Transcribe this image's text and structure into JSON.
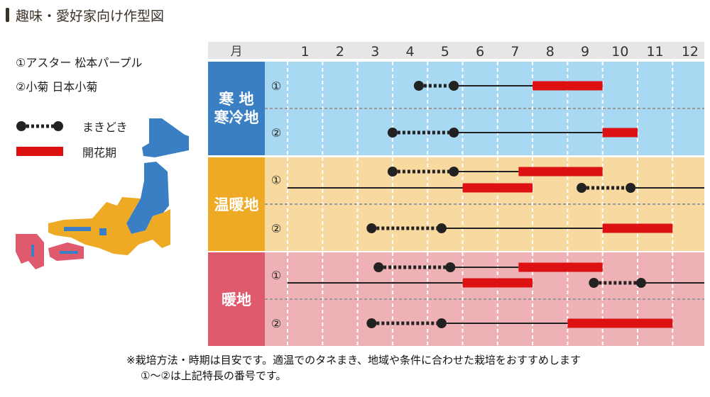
{
  "title": "趣味・愛好家向け作型図",
  "varieties": [
    "①アスター 松本パープル",
    "②小菊 日本小菊"
  ],
  "legend": {
    "sowing": "まきどき",
    "flowering": "開花期"
  },
  "colors": {
    "cold": "#3a7fc4",
    "cold_bg": "#a8d8f2",
    "warm": "#eeaa24",
    "warm_bg": "#f8d9a0",
    "hot": "#e05a6e",
    "hot_bg": "#eeb2b6",
    "bloom": "#dd1111",
    "line": "#222222",
    "header_bg": "#e6e6e6"
  },
  "chart_data": {
    "type": "gantt",
    "month_header": "月",
    "months": [
      "1",
      "2",
      "3",
      "4",
      "5",
      "6",
      "7",
      "8",
      "9",
      "10",
      "11",
      "12"
    ],
    "regions": [
      {
        "name": "寒 地",
        "name2": "寒冷地",
        "key": "cold",
        "rows": [
          {
            "label": "①",
            "tracks": [
              [
                {
                  "type": "sow",
                  "from": 4.75,
                  "to": 5.75
                },
                {
                  "type": "grow",
                  "from": 5.75,
                  "to": 8.0
                },
                {
                  "type": "bloom",
                  "from": 8.0,
                  "to": 10.0
                }
              ]
            ]
          },
          {
            "label": "②",
            "tracks": [
              [
                {
                  "type": "sow",
                  "from": 4.0,
                  "to": 5.75
                },
                {
                  "type": "grow",
                  "from": 5.75,
                  "to": 10.0
                },
                {
                  "type": "bloom",
                  "from": 10.0,
                  "to": 11.0
                }
              ]
            ]
          }
        ]
      },
      {
        "name": "温暖地",
        "name2": "",
        "key": "warm",
        "rows": [
          {
            "label": "①",
            "tracks": [
              [
                {
                  "type": "sow",
                  "from": 4.0,
                  "to": 5.75
                },
                {
                  "type": "grow",
                  "from": 5.75,
                  "to": 7.6
                },
                {
                  "type": "bloom",
                  "from": 7.6,
                  "to": 10.0
                }
              ],
              [
                {
                  "type": "grow",
                  "from": 1.0,
                  "to": 6.0
                },
                {
                  "type": "bloom",
                  "from": 6.0,
                  "to": 8.0
                },
                {
                  "type": "sow",
                  "from": 9.4,
                  "to": 10.8
                },
                {
                  "type": "grow",
                  "from": 10.8,
                  "to": 13.0
                }
              ]
            ]
          },
          {
            "label": "②",
            "tracks": [
              [
                {
                  "type": "sow",
                  "from": 3.4,
                  "to": 5.4
                },
                {
                  "type": "grow",
                  "from": 5.4,
                  "to": 10.0
                },
                {
                  "type": "bloom",
                  "from": 10.0,
                  "to": 12.0
                }
              ]
            ]
          }
        ]
      },
      {
        "name": "暖地",
        "name2": "",
        "key": "hot",
        "rows": [
          {
            "label": "①",
            "tracks": [
              [
                {
                  "type": "sow",
                  "from": 3.6,
                  "to": 5.65
                },
                {
                  "type": "grow",
                  "from": 5.65,
                  "to": 7.6
                },
                {
                  "type": "bloom",
                  "from": 7.6,
                  "to": 10.0
                }
              ],
              [
                {
                  "type": "grow",
                  "from": 1.0,
                  "to": 6.0
                },
                {
                  "type": "bloom",
                  "from": 6.0,
                  "to": 8.0
                },
                {
                  "type": "sow",
                  "from": 9.75,
                  "to": 11.1
                },
                {
                  "type": "grow",
                  "from": 11.1,
                  "to": 13.0
                }
              ]
            ]
          },
          {
            "label": "②",
            "tracks": [
              [
                {
                  "type": "sow",
                  "from": 3.4,
                  "to": 5.4
                },
                {
                  "type": "grow",
                  "from": 5.4,
                  "to": 9.0
                },
                {
                  "type": "bloom",
                  "from": 9.0,
                  "to": 12.0
                }
              ]
            ]
          }
        ]
      }
    ]
  },
  "notes": [
    "※栽培方法・時期は目安です。適温でのタネまき、地域や条件に合わせた栽培をおすすめします",
    "①～②は上記特長の番号です。"
  ]
}
